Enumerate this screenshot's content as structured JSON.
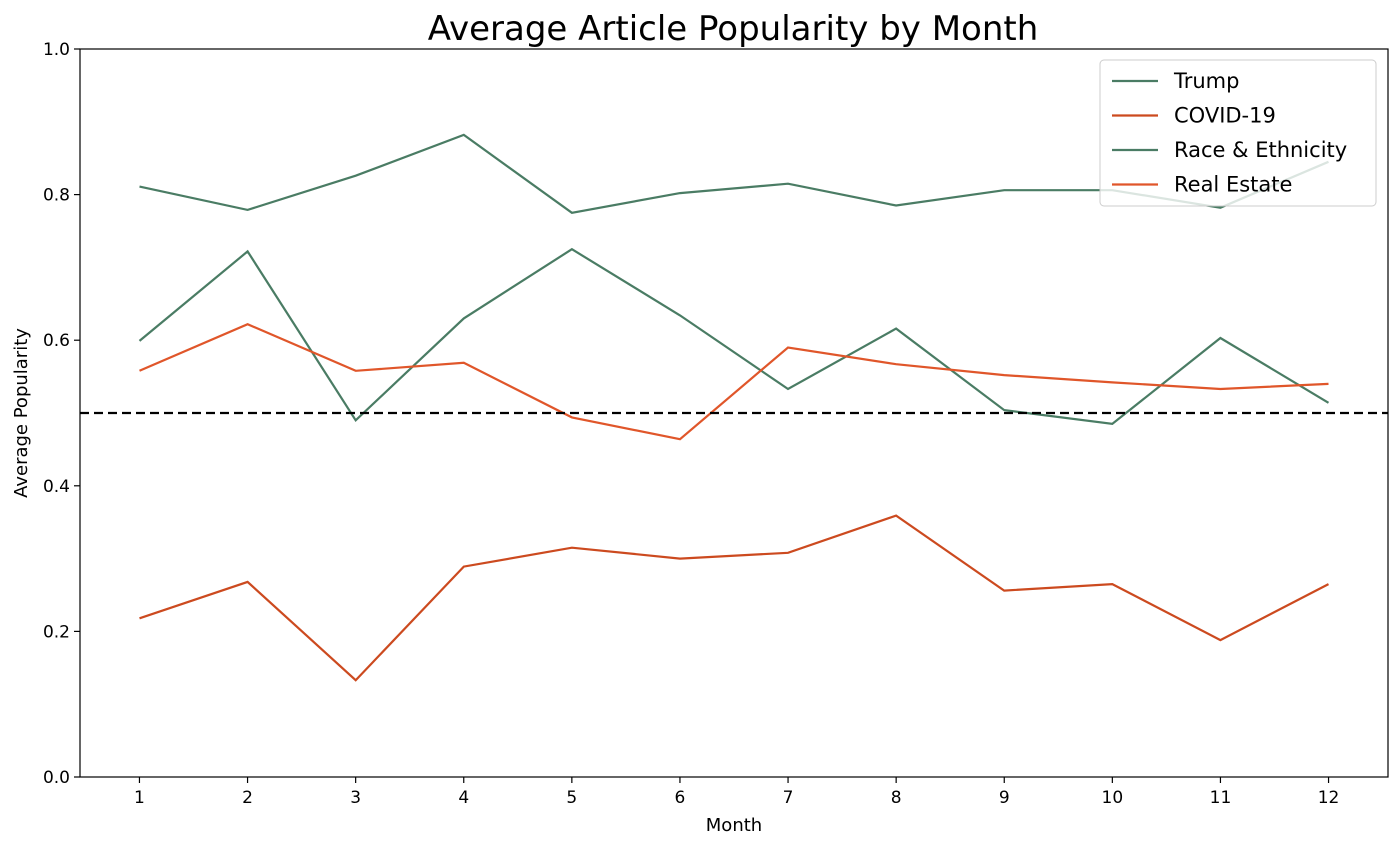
{
  "chart_data": {
    "type": "line",
    "title": "Average Article Popularity by Month",
    "xlabel": "Month",
    "ylabel": "Average Popularity",
    "x": [
      1,
      2,
      3,
      4,
      5,
      6,
      7,
      8,
      9,
      10,
      11,
      12
    ],
    "xticks": [
      "1",
      "2",
      "3",
      "4",
      "5",
      "6",
      "7",
      "8",
      "9",
      "10",
      "11",
      "12"
    ],
    "ylim": [
      0,
      1.0
    ],
    "yticks": [
      "0.0",
      "0.2",
      "0.4",
      "0.6",
      "0.8",
      "1.0"
    ],
    "reference_line": {
      "y": 0.5,
      "style": "dashed",
      "color": "#000000"
    },
    "legend_position": "top-right",
    "grid": false,
    "series": [
      {
        "name": "Trump",
        "color": "#4a7c64",
        "values": [
          0.811,
          0.779,
          0.826,
          0.882,
          0.775,
          0.802,
          0.815,
          0.785,
          0.806,
          0.806,
          0.782,
          0.845
        ]
      },
      {
        "name": "COVID-19",
        "color": "#cc4a1f",
        "values": [
          0.218,
          0.268,
          0.133,
          0.289,
          0.315,
          0.3,
          0.308,
          0.359,
          0.256,
          0.265,
          0.188,
          0.265
        ]
      },
      {
        "name": "Race & Ethnicity",
        "color": "#4a7c64",
        "values": [
          0.599,
          0.722,
          0.49,
          0.63,
          0.725,
          0.634,
          0.533,
          0.616,
          0.504,
          0.485,
          0.603,
          0.514
        ]
      },
      {
        "name": "Real Estate",
        "color": "#e0562a",
        "values": [
          0.558,
          0.622,
          0.558,
          0.569,
          0.494,
          0.464,
          0.59,
          0.567,
          0.552,
          0.542,
          0.533,
          0.54
        ]
      }
    ]
  }
}
